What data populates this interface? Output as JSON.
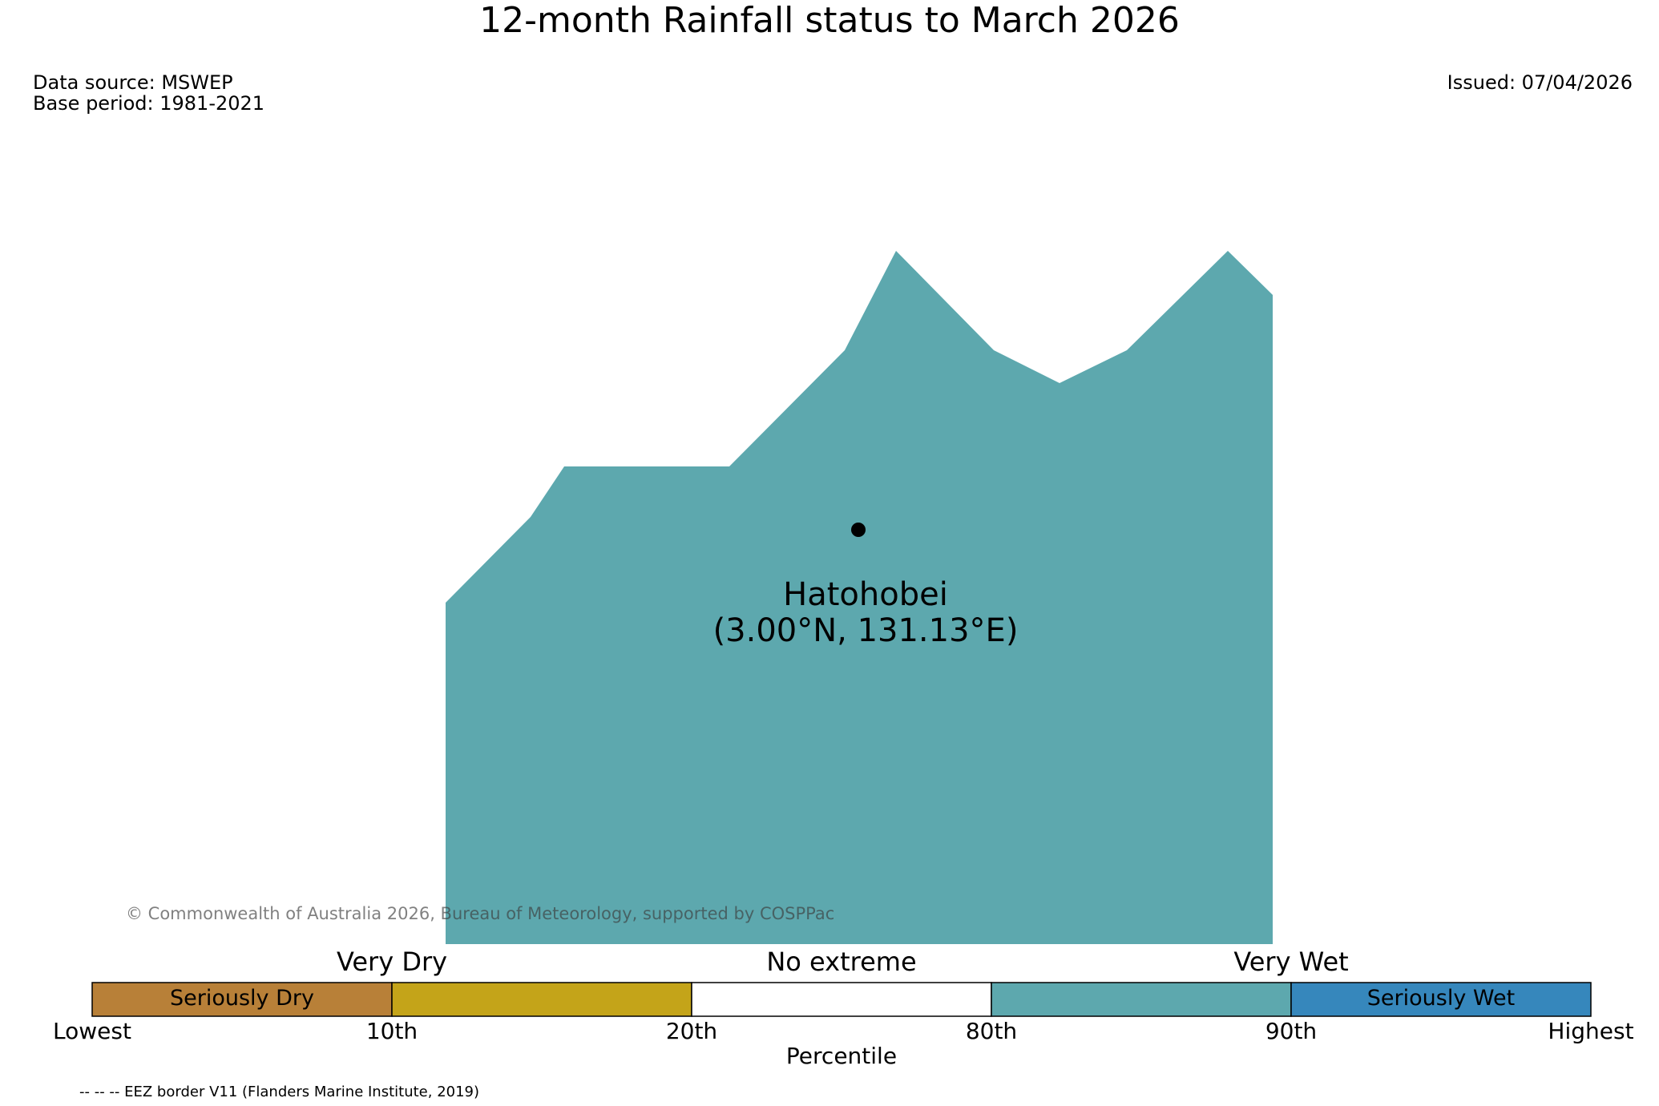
{
  "title": "12-month Rainfall status to March 2026",
  "meta": {
    "data_source": "Data source: MSWEP",
    "base_period": "Base period: 1981-2021",
    "issued": "Issued: 07/04/2026"
  },
  "map": {
    "station_name": "Hatohobei",
    "station_coords": "(3.00°N, 131.13°E)",
    "fill_color": "#5da8ae",
    "marker": "station-point"
  },
  "copyright": "© Commonwealth of Australia 2026, Bureau of Meteorology, supported by COSPPac",
  "legend": {
    "categories": [
      {
        "label": "Very Dry"
      },
      {
        "label": "No extreme"
      },
      {
        "label": "Very Wet"
      }
    ],
    "segments": [
      {
        "label": "Seriously Dry",
        "color": "#b88038"
      },
      {
        "label": "",
        "color": "#c4a419"
      },
      {
        "label": "",
        "color": "#ffffff"
      },
      {
        "label": "",
        "color": "#5da8ae"
      },
      {
        "label": "Seriously Wet",
        "color": "#3687bc"
      }
    ],
    "ticks": [
      "Lowest",
      "10th",
      "20th",
      "80th",
      "90th",
      "Highest"
    ],
    "xlabel": "Percentile"
  },
  "footnote": "-- -- -- EEZ border V11 (Flanders Marine Institute, 2019)"
}
